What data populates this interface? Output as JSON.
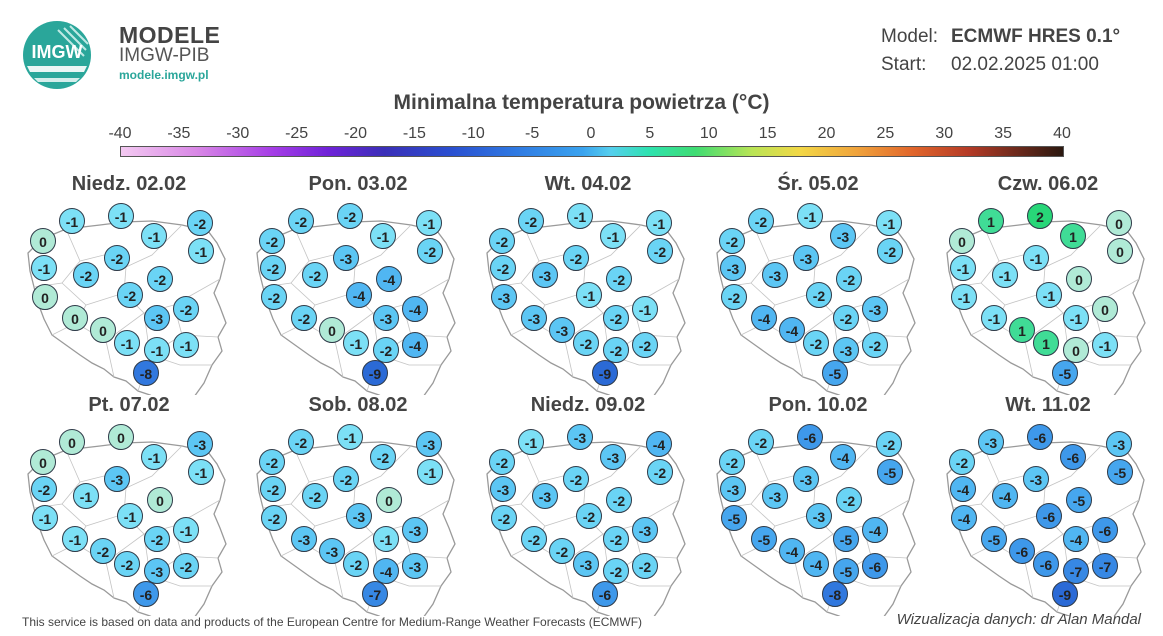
{
  "brand": {
    "logo_text": "IMGW",
    "title": "MODELE",
    "subtitle": "IMGW-PIB",
    "url": "modele.imgw.pl"
  },
  "meta": {
    "model_label": "Model:",
    "model_value": "ECMWF HRES 0.1°",
    "start_label": "Start:",
    "start_value": "02.02.2025 01:00"
  },
  "title": "Minimalna temperatura powietrza (°C)",
  "scale": {
    "ticks": [
      "-40",
      "-35",
      "-30",
      "-25",
      "-20",
      "-15",
      "-10",
      "-5",
      "0",
      "5",
      "10",
      "15",
      "20",
      "25",
      "30",
      "35",
      "40"
    ],
    "min": -40,
    "max": 40
  },
  "forecast_days": [
    {
      "label": "Niedz. 02.02",
      "values": [
        "0",
        "-1",
        "-1",
        "-2",
        "-1",
        "-2",
        "-1",
        "-1",
        "-2",
        "-2",
        "0",
        "-2",
        "0",
        "-2",
        "-3",
        "0",
        "-1",
        "-1",
        "-1",
        "-8"
      ]
    },
    {
      "label": "Pon. 03.02",
      "values": [
        "-2",
        "-2",
        "-2",
        "-1",
        "-1",
        "-3",
        "-2",
        "-2",
        "-2",
        "-4",
        "-2",
        "-4",
        "-2",
        "-4",
        "-3",
        "0",
        "-1",
        "-2",
        "-4",
        "-9"
      ]
    },
    {
      "label": "Wt. 04.02",
      "values": [
        "-2",
        "-2",
        "-1",
        "-1",
        "-1",
        "-2",
        "-2",
        "-2",
        "-3",
        "-2",
        "-3",
        "-1",
        "-3",
        "-1",
        "-2",
        "-3",
        "-2",
        "-2",
        "-2",
        "-9"
      ]
    },
    {
      "label": "Śr. 05.02",
      "values": [
        "-2",
        "-2",
        "-1",
        "-1",
        "-3",
        "-3",
        "-2",
        "-3",
        "-3",
        "-2",
        "-2",
        "-2",
        "-4",
        "-3",
        "-2",
        "-4",
        "-2",
        "-3",
        "-2",
        "-5"
      ]
    },
    {
      "label": "Czw. 06.02",
      "values": [
        "0",
        "1",
        "2",
        "0",
        "1",
        "-1",
        "0",
        "-1",
        "-1",
        "0",
        "-1",
        "-1",
        "-1",
        "0",
        "-1",
        "1",
        "1",
        "0",
        "-1",
        "-5"
      ]
    },
    {
      "label": "Pt. 07.02",
      "values": [
        "0",
        "0",
        "0",
        "-3",
        "-1",
        "-3",
        "-1",
        "-2",
        "-1",
        "0",
        "-1",
        "-1",
        "-1",
        "-1",
        "-2",
        "-2",
        "-2",
        "-3",
        "-2",
        "-6"
      ]
    },
    {
      "label": "Sob. 08.02",
      "values": [
        "-2",
        "-2",
        "-1",
        "-3",
        "-2",
        "-2",
        "-1",
        "-2",
        "-2",
        "0",
        "-2",
        "-3",
        "-3",
        "-3",
        "-1",
        "-3",
        "-2",
        "-4",
        "-3",
        "-7"
      ]
    },
    {
      "label": "Niedz. 09.02",
      "values": [
        "-2",
        "-1",
        "-3",
        "-4",
        "-3",
        "-2",
        "-2",
        "-3",
        "-3",
        "-2",
        "-2",
        "-2",
        "-2",
        "-3",
        "-2",
        "-2",
        "-3",
        "-2",
        "-2",
        "-6"
      ]
    },
    {
      "label": "Pon. 10.02",
      "values": [
        "-2",
        "-2",
        "-6",
        "-2",
        "-4",
        "-3",
        "-5",
        "-3",
        "-3",
        "-2",
        "-5",
        "-3",
        "-5",
        "-4",
        "-5",
        "-4",
        "-4",
        "-5",
        "-6",
        "-8"
      ]
    },
    {
      "label": "Wt. 11.02",
      "values": [
        "-2",
        "-3",
        "-6",
        "-3",
        "-6",
        "-3",
        "-5",
        "-4",
        "-4",
        "-5",
        "-4",
        "-6",
        "-5",
        "-6",
        "-4",
        "-6",
        "-6",
        "-7",
        "-7",
        "-9"
      ]
    }
  ],
  "footer": {
    "source": "This service is based on data and products of the European Centre for Medium-Range Weather Forecasts (ECMWF)",
    "credit": "Wizualizacja danych: dr Alan Mandal"
  }
}
